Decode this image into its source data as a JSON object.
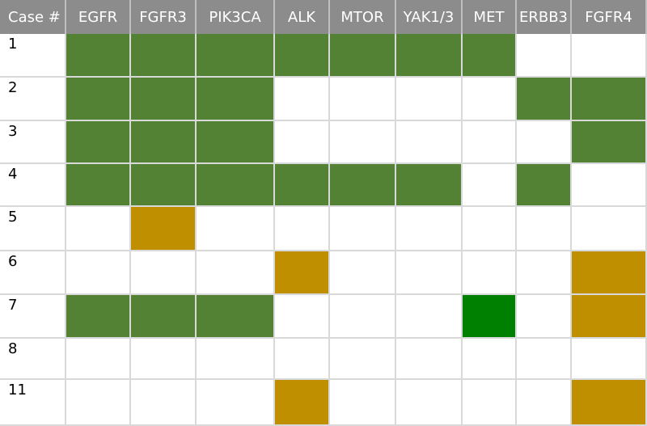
{
  "chart_data": {
    "type": "table",
    "corner_label": "Case #",
    "columns": [
      "EGFR",
      "FGFR3",
      "PIK3CA",
      "ALK",
      "MTOR",
      "YAK1/3",
      "MET",
      "ERBB3",
      "FGFR4"
    ],
    "rows": [
      "1",
      "2",
      "3",
      "4",
      "5",
      "6",
      "7",
      "8",
      "11"
    ],
    "cells": [
      [
        "G",
        "G",
        "G",
        "G",
        "G",
        "G",
        "G",
        "",
        ""
      ],
      [
        "G",
        "G",
        "G",
        "",
        "",
        "",
        "",
        "G",
        "G"
      ],
      [
        "G",
        "G",
        "G",
        "",
        "",
        "",
        "",
        "",
        "G"
      ],
      [
        "G",
        "G",
        "G",
        "G",
        "G",
        "G",
        "",
        "G",
        ""
      ],
      [
        "",
        "Y",
        "",
        "",
        "",
        "",
        "",
        "",
        ""
      ],
      [
        "",
        "",
        "",
        "Y",
        "",
        "",
        "",
        "",
        "Y"
      ],
      [
        "G",
        "G",
        "G",
        "",
        "",
        "",
        "B",
        "",
        "Y"
      ],
      [
        "",
        "",
        "",
        "",
        "",
        "",
        "",
        "",
        ""
      ],
      [
        "",
        "",
        "",
        "Y",
        "",
        "",
        "",
        "",
        "Y"
      ]
    ],
    "colors": {
      "G": "#548235",
      "Y": "#bf8f00",
      "B": "#008000",
      "header_bg": "#8c8c8c",
      "header_text": "#ffffff",
      "grid_line": "#d9d9d9"
    }
  }
}
